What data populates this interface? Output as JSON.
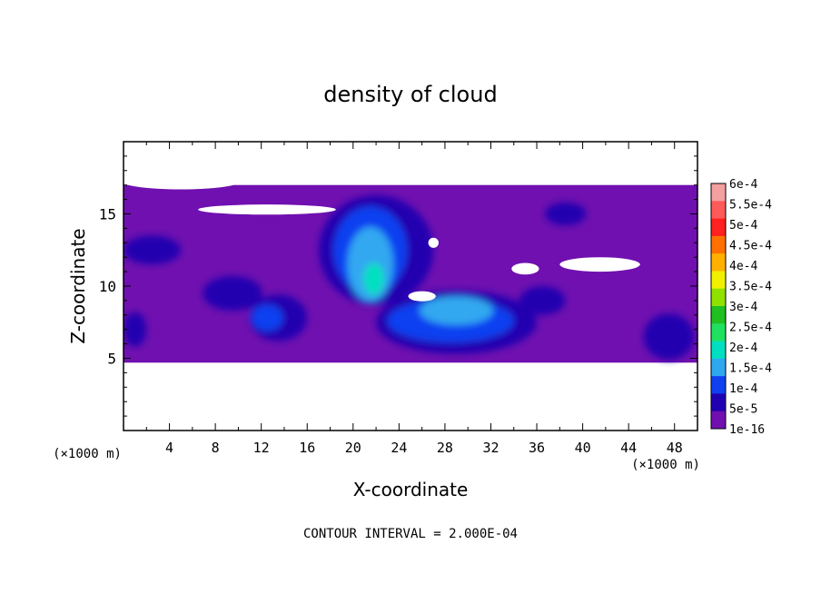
{
  "chart_data": {
    "type": "heatmap",
    "title": "density of cloud",
    "xlabel": "X-coordinate",
    "ylabel": "Z-coordinate",
    "x_unit_left": "(×1000 m)",
    "x_unit_right": "(×1000 m)",
    "footer": "CONTOUR INTERVAL = 2.000E-04",
    "xlim": [
      0,
      50
    ],
    "ylim": [
      0,
      20
    ],
    "x_ticks": [
      4,
      8,
      12,
      16,
      20,
      24,
      28,
      32,
      36,
      40,
      44,
      48
    ],
    "y_ticks": [
      5,
      10,
      15
    ],
    "cloud_band_z": [
      4.7,
      17
    ],
    "colorbar": {
      "labels": [
        "6e-4",
        "5.5e-4",
        "5e-4",
        "4.5e-4",
        "4e-4",
        "3.5e-4",
        "3e-4",
        "2.5e-4",
        "2e-4",
        "1.5e-4",
        "1e-4",
        "5e-5",
        "1e-16"
      ],
      "colors": [
        "#f4a0a0",
        "#ff5a5a",
        "#ff2020",
        "#ff7000",
        "#ffb000",
        "#f0f000",
        "#90e000",
        "#20c020",
        "#20e060",
        "#00e0c0",
        "#30a8f0",
        "#1040f0",
        "#2000b0",
        "#7010b0"
      ]
    },
    "regions": [
      {
        "level": "5e-5",
        "color": "#2000b0",
        "cx": 22,
        "cz": 12.5,
        "rx": 5.0,
        "rz": 3.8
      },
      {
        "level": "5e-5",
        "color": "#2000b0",
        "cx": 29,
        "cz": 7.5,
        "rx": 7.0,
        "rz": 2.2
      },
      {
        "level": "5e-5",
        "color": "#2000b0",
        "cx": 9.5,
        "cz": 9.5,
        "rx": 2.6,
        "rz": 1.2
      },
      {
        "level": "5e-5",
        "color": "#2000b0",
        "cx": 13.5,
        "cz": 7.8,
        "rx": 2.5,
        "rz": 1.6
      },
      {
        "level": "5e-5",
        "color": "#2000b0",
        "cx": 47.5,
        "cz": 6.5,
        "rx": 2.2,
        "rz": 1.6
      },
      {
        "level": "5e-5",
        "color": "#2000b0",
        "cx": 36.5,
        "cz": 9.0,
        "rx": 2.0,
        "rz": 1.0
      },
      {
        "level": "5e-5",
        "color": "#2000b0",
        "cx": 2.5,
        "cz": 12.5,
        "rx": 2.5,
        "rz": 1.0
      },
      {
        "level": "5e-5",
        "color": "#2000b0",
        "cx": 38.5,
        "cz": 15.0,
        "rx": 1.8,
        "rz": 0.8
      },
      {
        "level": "5e-5",
        "color": "#2000b0",
        "cx": 1.0,
        "cz": 7.0,
        "rx": 1.0,
        "rz": 1.2
      },
      {
        "level": "1e-4",
        "color": "#1040f0",
        "cx": 21.5,
        "cz": 12.5,
        "rx": 3.2,
        "rz": 3.0
      },
      {
        "level": "1e-4",
        "color": "#1040f0",
        "cx": 28.5,
        "cz": 7.6,
        "rx": 5.5,
        "rz": 1.5
      },
      {
        "level": "1e-4",
        "color": "#1040f0",
        "cx": 12.5,
        "cz": 7.8,
        "rx": 1.4,
        "rz": 0.9
      },
      {
        "level": "1.5e-4",
        "color": "#30a8f0",
        "cx": 21.5,
        "cz": 11.5,
        "rx": 2.0,
        "rz": 2.6
      },
      {
        "level": "1.5e-4",
        "color": "#30a8f0",
        "cx": 29.0,
        "cz": 8.3,
        "rx": 3.2,
        "rz": 1.0
      },
      {
        "level": "2e-4",
        "color": "#00e0c0",
        "cx": 21.8,
        "cz": 10.5,
        "rx": 0.9,
        "rz": 1.1
      }
    ],
    "gaps": [
      {
        "cx": 5.0,
        "cz": 17.2,
        "rx": 5.0,
        "rz": 0.5
      },
      {
        "cx": 12.5,
        "cz": 15.3,
        "rx": 6.0,
        "rz": 0.35
      },
      {
        "cx": 27.0,
        "cz": 13.0,
        "rx": 0.45,
        "rz": 0.35
      },
      {
        "cx": 26.0,
        "cz": 9.3,
        "rx": 1.2,
        "rz": 0.35
      },
      {
        "cx": 41.5,
        "cz": 11.5,
        "rx": 3.5,
        "rz": 0.5
      },
      {
        "cx": 35.0,
        "cz": 11.2,
        "rx": 1.2,
        "rz": 0.4
      }
    ]
  }
}
